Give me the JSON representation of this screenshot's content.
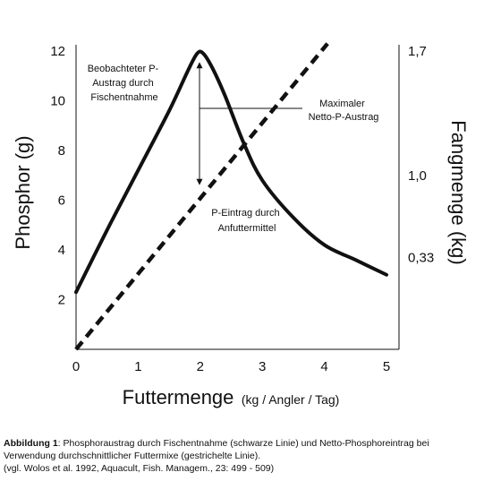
{
  "chart_data": {
    "type": "line",
    "title": "",
    "xlabel": "Futtermenge",
    "xlabel_unit": "(kg / Angler / Tag)",
    "ylabel": "Phosphor (g)",
    "y2label": "Fangmenge (kg)",
    "xlim": [
      0,
      5
    ],
    "ylim": [
      0,
      12
    ],
    "x_ticks": [
      "0",
      "1",
      "2",
      "3",
      "4",
      "5"
    ],
    "y_ticks": [
      "2",
      "4",
      "6",
      "8",
      "10",
      "12"
    ],
    "y2_ticks": [
      "0,33",
      "1,0",
      "1,7"
    ],
    "grid": false,
    "series": [
      {
        "style": "solid",
        "x": [
          0,
          0.5,
          1.0,
          1.5,
          1.8,
          1.95,
          2.05,
          2.2,
          2.4,
          2.7,
          3.0,
          3.5,
          4.0,
          4.5,
          5.0
        ],
        "y": [
          2.3,
          4.8,
          7.2,
          9.6,
          11.2,
          11.9,
          11.9,
          11.3,
          10.2,
          8.3,
          6.8,
          5.3,
          4.2,
          3.6,
          3.0
        ]
      },
      {
        "style": "dashed",
        "x": [
          0,
          4.05
        ],
        "y": [
          0,
          12.3
        ]
      }
    ],
    "annotations": [
      {
        "lines": [
          "Beobachteter P-",
          "Austrag durch",
          "Fischentnahme"
        ]
      },
      {
        "lines": [
          "Maximaler",
          "Netto-P-Austrag"
        ]
      },
      {
        "lines": [
          "P-Eintrag durch",
          "Anfuttermittel"
        ]
      }
    ]
  },
  "caption": {
    "label": "Abbildung 1",
    "text": ": Phosphoraustrag durch Fischentnahme (schwarze Linie) und Netto-Phosphoreintrag bei Verwendung durchschnittlicher Futtermixe (gestrichelte Linie).",
    "source": "(vgl. Wolos et al. 1992, Aquacult, Fish. Managem., 23: 499 - 509)"
  }
}
